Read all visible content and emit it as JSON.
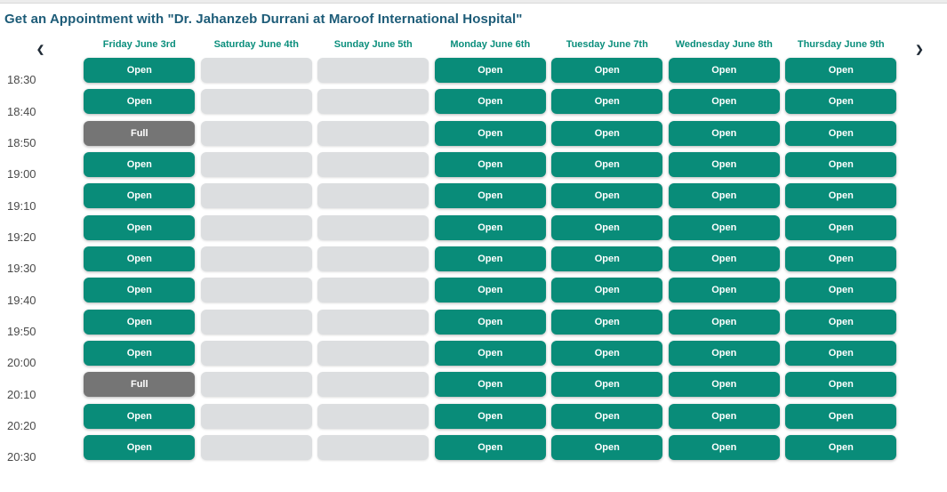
{
  "title": "Get an Appointment with \"Dr. Jahanzeb Durrani at Maroof International Hospital\"",
  "nav": {
    "prev": "❮",
    "next": "❯"
  },
  "colors": {
    "accent_teal": "#098c79",
    "full_gray": "#757575",
    "unavailable_gray": "#dcdee0",
    "title_blue": "#1d5c78"
  },
  "slot_labels": {
    "open": "Open",
    "full": "Full",
    "unavailable": ""
  },
  "schedule": {
    "days": [
      "Friday June 3rd",
      "Saturday June 4th",
      "Sunday June 5th",
      "Monday June 6th",
      "Tuesday June 7th",
      "Wednesday June 8th",
      "Thursday June 9th"
    ],
    "times": [
      "18:30",
      "18:40",
      "18:50",
      "19:00",
      "19:10",
      "19:20",
      "19:30",
      "19:40",
      "19:50",
      "20:00",
      "20:10",
      "20:20",
      "20:30"
    ],
    "rows": [
      [
        "open",
        "unavailable",
        "unavailable",
        "open",
        "open",
        "open",
        "open"
      ],
      [
        "open",
        "unavailable",
        "unavailable",
        "open",
        "open",
        "open",
        "open"
      ],
      [
        "full",
        "unavailable",
        "unavailable",
        "open",
        "open",
        "open",
        "open"
      ],
      [
        "open",
        "unavailable",
        "unavailable",
        "open",
        "open",
        "open",
        "open"
      ],
      [
        "open",
        "unavailable",
        "unavailable",
        "open",
        "open",
        "open",
        "open"
      ],
      [
        "open",
        "unavailable",
        "unavailable",
        "open",
        "open",
        "open",
        "open"
      ],
      [
        "open",
        "unavailable",
        "unavailable",
        "open",
        "open",
        "open",
        "open"
      ],
      [
        "open",
        "unavailable",
        "unavailable",
        "open",
        "open",
        "open",
        "open"
      ],
      [
        "open",
        "unavailable",
        "unavailable",
        "open",
        "open",
        "open",
        "open"
      ],
      [
        "open",
        "unavailable",
        "unavailable",
        "open",
        "open",
        "open",
        "open"
      ],
      [
        "full",
        "unavailable",
        "unavailable",
        "open",
        "open",
        "open",
        "open"
      ],
      [
        "open",
        "unavailable",
        "unavailable",
        "open",
        "open",
        "open",
        "open"
      ],
      [
        "open",
        "unavailable",
        "unavailable",
        "open",
        "open",
        "open",
        "open"
      ]
    ]
  }
}
